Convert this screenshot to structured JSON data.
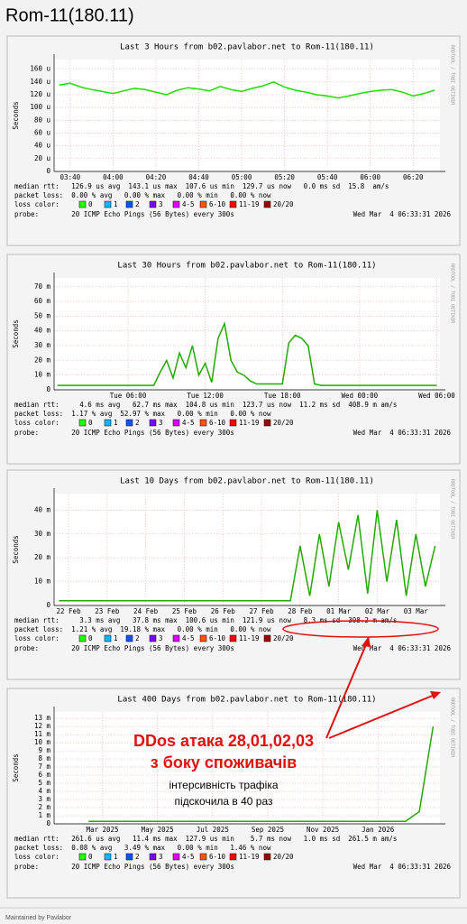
{
  "page_title": "Rom-11(180.11)",
  "footer": "Maintained by Pavlabor",
  "watermark": "RRDTOOL / TOBI OETIKER",
  "loss_label": "loss color:",
  "loss_legend": [
    {
      "name": "0",
      "color": "#26ff00"
    },
    {
      "name": "1",
      "color": "#00b8ff"
    },
    {
      "name": "2",
      "color": "#0059ff"
    },
    {
      "name": "3",
      "color": "#7e00ff"
    },
    {
      "name": "4-5",
      "color": "#dd00ff"
    },
    {
      "name": "6-10",
      "color": "#ff5500"
    },
    {
      "name": "11-19",
      "color": "#ff0000"
    },
    {
      "name": "20/20",
      "color": "#a00000"
    }
  ],
  "annotation": {
    "headline": [
      "DDos атака 28,01,02,03",
      "з боку споживачів"
    ],
    "note": [
      "інтерсивність трафіка",
      "підскочила в 40 раз"
    ]
  },
  "chart_data": [
    {
      "type": "line",
      "title": "Last 3 Hours from b02.pavlabor.net to Rom-11(180.11)",
      "ylabel": "Seconds",
      "color": "#22dd00",
      "grid": true,
      "categories": [
        null,
        "03:40",
        null,
        null,
        null,
        "04:00",
        null,
        null,
        null,
        "04:20",
        null,
        null,
        null,
        "04:40",
        null,
        null,
        null,
        "05:00",
        null,
        null,
        null,
        "05:20",
        null,
        null,
        null,
        "05:40",
        null,
        null,
        null,
        "06:00",
        null,
        null,
        null,
        "06:20",
        null,
        null
      ],
      "values": [
        0.000135,
        0.000138,
        0.000132,
        0.000128,
        0.000125,
        0.000122,
        0.000126,
        0.00013,
        0.000128,
        0.000124,
        0.00012,
        0.000127,
        0.000131,
        0.000129,
        0.000126,
        0.000133,
        0.000128,
        0.000125,
        0.00013,
        0.000134,
        0.00014,
        0.000132,
        0.000127,
        0.000124,
        0.00012,
        0.000118,
        0.000115,
        0.000118,
        0.000122,
        0.000125,
        0.000127,
        0.000128,
        0.000124,
        0.000118,
        0.000122,
        0.000127
      ],
      "ylim": [
        0,
        0.000175
      ],
      "yticks": [
        0,
        {
          "value": 2e-05,
          "label": "20 u"
        },
        {
          "value": 4e-05,
          "label": "40 u"
        },
        {
          "value": 6e-05,
          "label": "60 u"
        },
        {
          "value": 8e-05,
          "label": "80 u"
        },
        {
          "value": 0.0001,
          "label": "100 u"
        },
        {
          "value": 0.00012,
          "label": "120 u"
        },
        {
          "value": 0.00014,
          "label": "140 u"
        },
        {
          "value": 0.00016,
          "label": "160 u"
        }
      ],
      "median_rtt": "median rtt:   126.9 us avg  143.1 us max  107.6 us min  129.7 us now   0.0 ms sd  15.8  am/s",
      "packet_loss": "packet loss:  0.00 % avg   0.00 % max   0.00 % min   0.00 % now",
      "probe": "probe:        20 ICMP Echo Pings (56 Bytes) every 300s",
      "date": "Wed Mar  4 06:33:31 2026"
    },
    {
      "type": "line",
      "title": "Last 30 Hours from b02.pavlabor.net to Rom-11(180.11)",
      "ylabel": "Seconds",
      "color": "#22aa00",
      "grid": true,
      "categories": [
        null,
        null,
        null,
        null,
        null,
        null,
        null,
        null,
        null,
        null,
        null,
        "Tue 06:00",
        null,
        null,
        null,
        null,
        null,
        null,
        null,
        null,
        null,
        null,
        null,
        "Tue 12:00",
        null,
        null,
        null,
        null,
        null,
        null,
        null,
        null,
        null,
        null,
        null,
        "Tue 18:00",
        null,
        null,
        null,
        null,
        null,
        null,
        null,
        null,
        null,
        null,
        null,
        "Wed 00:00",
        null,
        null,
        null,
        null,
        null,
        null,
        null,
        null,
        null,
        null,
        null,
        "Wed 06:00"
      ],
      "values": [
        0.003,
        0.003,
        0.003,
        0.003,
        0.003,
        0.003,
        0.003,
        0.003,
        0.003,
        0.003,
        0.003,
        0.003,
        0.003,
        0.003,
        0.003,
        0.003,
        0.012,
        0.02,
        0.008,
        0.025,
        0.015,
        0.03,
        0.01,
        0.018,
        0.005,
        0.035,
        0.045,
        0.02,
        0.012,
        0.01,
        0.006,
        0.004,
        0.004,
        0.004,
        0.004,
        0.004,
        0.032,
        0.037,
        0.035,
        0.03,
        0.004,
        0.003,
        0.003,
        0.003,
        0.003,
        0.003,
        0.003,
        0.003,
        0.003,
        0.003,
        0.003,
        0.003,
        0.003,
        0.003,
        0.003,
        0.003,
        0.003,
        0.003,
        0.003,
        0.003
      ],
      "ylim": [
        0,
        0.076
      ],
      "yticks": [
        0,
        {
          "value": 0.01,
          "label": "10 m"
        },
        {
          "value": 0.02,
          "label": "20 m"
        },
        {
          "value": 0.03,
          "label": "30 m"
        },
        {
          "value": 0.04,
          "label": "40 m"
        },
        {
          "value": 0.05,
          "label": "50 m"
        },
        {
          "value": 0.06,
          "label": "60 m"
        },
        {
          "value": 0.07,
          "label": "70 m"
        }
      ],
      "median_rtt": "median rtt:     4.6 ms avg   62.7 ms max  104.8 us min  123.7 us now  11.2 ms sd  408.9 m am/s",
      "packet_loss": "packet loss:  1.17 % avg  52.97 % max   0.00 % min   0.00 % now",
      "probe": "probe:        20 ICMP Echo Pings (56 Bytes) every 300s",
      "date": "Wed Mar  4 06:33:31 2026"
    },
    {
      "type": "line",
      "title": "Last 10 Days from b02.pavlabor.net to Rom-11(180.11)",
      "ylabel": "Seconds",
      "color": "#22aa00",
      "grid": true,
      "categories": [
        null,
        "22 Feb",
        null,
        null,
        null,
        "23 Feb",
        null,
        null,
        null,
        "24 Feb",
        null,
        null,
        null,
        "25 Feb",
        null,
        null,
        null,
        "26 Feb",
        null,
        null,
        null,
        "27 Feb",
        null,
        null,
        null,
        "28 Feb",
        null,
        null,
        null,
        "01 Mar",
        null,
        null,
        null,
        "02 Mar",
        null,
        null,
        null,
        "03 Mar",
        null,
        null
      ],
      "values": [
        0.002,
        0.002,
        0.002,
        0.002,
        0.002,
        0.002,
        0.002,
        0.002,
        0.002,
        0.002,
        0.002,
        0.002,
        0.002,
        0.002,
        0.002,
        0.002,
        0.002,
        0.002,
        0.002,
        0.002,
        0.002,
        0.002,
        0.002,
        0.002,
        0.002,
        0.025,
        0.004,
        0.03,
        0.008,
        0.035,
        0.015,
        0.038,
        0.005,
        0.04,
        0.01,
        0.036,
        0.004,
        0.03,
        0.008,
        0.025
      ],
      "ylim": [
        0,
        0.047
      ],
      "yticks": [
        0,
        {
          "value": 0.01,
          "label": "10 m"
        },
        {
          "value": 0.02,
          "label": "20 m"
        },
        {
          "value": 0.03,
          "label": "30 m"
        },
        {
          "value": 0.04,
          "label": "40 m"
        }
      ],
      "median_rtt": "median rtt:     3.3 ms avg   37.8 ms max  100.6 us min  121.9 us now   8.3 ms sd  398.2 m am/s",
      "packet_loss": "packet loss:  1.21 % avg  19.18 % max   0.00 % min   0.00 % now",
      "probe": "probe:        20 ICMP Echo Pings (56 Bytes) every 300s",
      "date": "Wed Mar  4 06:33:31 2026"
    },
    {
      "type": "line",
      "title": "Last 400 Days from b02.pavlabor.net to Rom-11(180.11)",
      "ylabel": "Seconds",
      "color": "#22aa00",
      "grid": true,
      "categories": [
        null,
        null,
        null,
        "Mar 2025",
        null,
        null,
        null,
        "May 2025",
        null,
        null,
        null,
        "Jul 2025",
        null,
        null,
        null,
        "Sep 2025",
        null,
        null,
        null,
        "Nov 2025",
        null,
        null,
        null,
        "Jan 2026",
        null,
        null,
        null,
        null
      ],
      "values": [
        null,
        null,
        0.0003,
        0.0003,
        0.0003,
        0.0003,
        0.0003,
        0.0003,
        0.0003,
        0.0003,
        0.0003,
        0.0003,
        0.0003,
        0.0003,
        0.0003,
        0.0003,
        0.0003,
        0.0003,
        0.0003,
        0.0003,
        0.0003,
        0.0003,
        0.0003,
        0.0003,
        0.0003,
        0.0003,
        0.0015,
        0.012
      ],
      "ylim": [
        0,
        0.0138
      ],
      "yticks": [
        0,
        {
          "value": 0.001,
          "label": "1 m"
        },
        {
          "value": 0.002,
          "label": "2 m"
        },
        {
          "value": 0.003,
          "label": "3 m"
        },
        {
          "value": 0.004,
          "label": "4 m"
        },
        {
          "value": 0.005,
          "label": "5 m"
        },
        {
          "value": 0.006,
          "label": "6 m"
        },
        {
          "value": 0.007,
          "label": "7 m"
        },
        {
          "value": 0.008,
          "label": "8 m"
        },
        {
          "value": 0.009,
          "label": "9 m"
        },
        {
          "value": 0.01,
          "label": "10 m"
        },
        {
          "value": 0.011,
          "label": "11 m"
        },
        {
          "value": 0.012,
          "label": "12 m"
        },
        {
          "value": 0.013,
          "label": "13 m"
        }
      ],
      "median_rtt": "median rtt:   261.6 us avg   11.4 ms max  127.9 us min    5.7 ms now   1.0 ms sd  261.5 m am/s",
      "packet_loss": "packet loss:  0.08 % avg   3.49 % max   0.00 % min   1.46 % now",
      "probe": "probe:        20 ICMP Echo Pings (56 Bytes) every 300s",
      "date": "Wed Mar  4 06:33:31 2026"
    }
  ]
}
